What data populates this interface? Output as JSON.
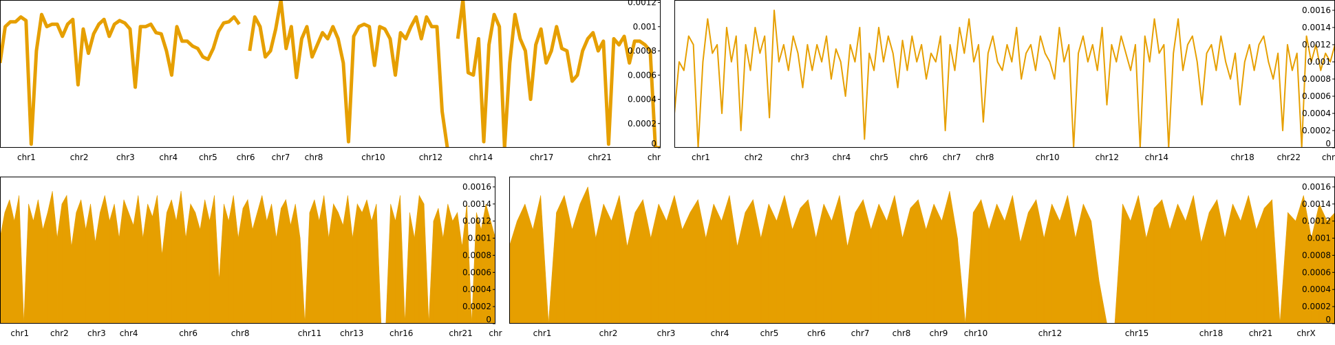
{
  "colors": {
    "series": "#E69F00",
    "axis": "#000000",
    "background": "#FFFFFF"
  },
  "chart_data": [
    {
      "type": "line",
      "title": "",
      "xlabel": "",
      "ylabel": "",
      "line_width": "thick",
      "y_axis_side": "right",
      "ylim": [
        0,
        0.00122
      ],
      "y_ticks": [
        "0",
        "0.0002",
        "0.0004",
        "0.0006",
        "0.0008",
        "0.001",
        "0.0012"
      ],
      "y_tick_values": [
        0,
        0.0002,
        0.0004,
        0.0006,
        0.0008,
        0.001,
        0.0012
      ],
      "x_tick_labels": [
        "chr1",
        "chr2",
        "chr3",
        "chr4",
        "chr5",
        "chr6",
        "chr7",
        "chr8",
        "chr10",
        "chr12",
        "chr14",
        "chr17",
        "chr21",
        "chr"
      ],
      "x_tick_positions": [
        0.04,
        0.12,
        0.19,
        0.255,
        0.315,
        0.372,
        0.425,
        0.475,
        0.565,
        0.652,
        0.728,
        0.82,
        0.908,
        0.99
      ],
      "values": [
        0.0007,
        0.001,
        0.00104,
        0.00104,
        0.00108,
        0.00105,
        3e-05,
        0.0008,
        0.0011,
        0.001,
        0.00102,
        0.00102,
        0.00092,
        0.00102,
        0.00106,
        0.00052,
        0.00098,
        0.00078,
        0.00094,
        0.00102,
        0.00106,
        0.00092,
        0.00102,
        0.00105,
        0.00103,
        0.00098,
        0.0005,
        0.001,
        0.001,
        0.00102,
        0.00095,
        0.00094,
        0.0008,
        0.0006,
        0.001,
        0.00088,
        0.00088,
        0.00084,
        0.00082,
        0.00075,
        0.00073,
        0.00082,
        0.00096,
        0.00103,
        0.00104,
        0.00108,
        0.00102,
        null,
        0.0008,
        0.00108,
        0.001,
        0.00075,
        0.0008,
        0.00098,
        0.00122,
        0.00082,
        0.001,
        0.00058,
        0.0009,
        0.001,
        0.00075,
        0.00085,
        0.00095,
        0.0009,
        0.001,
        0.0009,
        0.0007,
        5e-05,
        0.00092,
        0.001,
        0.00102,
        0.001,
        0.00068,
        0.001,
        0.00098,
        0.0009,
        0.0006,
        0.00095,
        0.0009,
        0.001,
        0.00108,
        0.0009,
        0.00108,
        0.001,
        0.001,
        0.0003,
        0.0,
        null,
        0.0009,
        0.00122,
        0.00062,
        0.0006,
        0.0009,
        5e-05,
        0.00085,
        0.0011,
        0.001,
        0.0,
        0.0007,
        0.0011,
        0.0009,
        0.0008,
        0.0004,
        0.00085,
        0.00098,
        0.0007,
        0.0008,
        0.001,
        0.00082,
        0.0008,
        0.00055,
        0.0006,
        0.0008,
        0.0009,
        0.00095,
        0.0008,
        0.00088,
        3e-05,
        0.0009,
        0.00085,
        0.00092,
        0.0007,
        0.00088,
        0.00088,
        0.00085,
        0.0008,
        0.0,
        0.0
      ]
    },
    {
      "type": "line",
      "title": "",
      "xlabel": "",
      "ylabel": "",
      "line_width": "medium",
      "y_axis_side": "right",
      "ylim": [
        0,
        0.00172
      ],
      "y_ticks": [
        "0",
        "0.0002",
        "0.0004",
        "0.0006",
        "0.0008",
        "0.001",
        "0.0012",
        "0.0014",
        "0.0016"
      ],
      "y_tick_values": [
        0,
        0.0002,
        0.0004,
        0.0006,
        0.0008,
        0.001,
        0.0012,
        0.0014,
        0.0016
      ],
      "x_tick_labels": [
        "chr1",
        "chr2",
        "chr3",
        "chr4",
        "chr5",
        "chr6",
        "chr7",
        "chr8",
        "chr10",
        "chr12",
        "chr14",
        "chr18",
        "chr22",
        "chr"
      ],
      "x_tick_positions": [
        0.04,
        0.12,
        0.19,
        0.253,
        0.31,
        0.37,
        0.42,
        0.47,
        0.565,
        0.655,
        0.73,
        0.86,
        0.93,
        0.99
      ],
      "values": [
        0.0004,
        0.001,
        0.0009,
        0.0013,
        0.0012,
        0.0,
        0.001,
        0.0015,
        0.0011,
        0.0012,
        0.0004,
        0.0014,
        0.001,
        0.0013,
        0.0002,
        0.0012,
        0.0009,
        0.0014,
        0.0011,
        0.0013,
        0.00035,
        0.0016,
        0.001,
        0.0012,
        0.0009,
        0.0013,
        0.0011,
        0.0007,
        0.0012,
        0.0009,
        0.0012,
        0.001,
        0.0013,
        0.0008,
        0.00115,
        0.001,
        0.0006,
        0.0012,
        0.001,
        0.0014,
        0.0001,
        0.0011,
        0.0009,
        0.0014,
        0.001,
        0.0013,
        0.0011,
        0.0007,
        0.00125,
        0.0009,
        0.0013,
        0.001,
        0.0012,
        0.0008,
        0.0011,
        0.001,
        0.0013,
        0.0002,
        0.0012,
        0.0009,
        0.0014,
        0.0011,
        0.0015,
        0.001,
        0.0012,
        0.0003,
        0.0011,
        0.0013,
        0.001,
        0.0009,
        0.0012,
        0.001,
        0.0014,
        0.0008,
        0.0011,
        0.0012,
        0.0009,
        0.0013,
        0.0011,
        0.001,
        0.0008,
        0.0014,
        0.001,
        0.0012,
        0.0,
        0.0011,
        0.0013,
        0.001,
        0.0012,
        0.0009,
        0.0014,
        0.0005,
        0.0012,
        0.001,
        0.0013,
        0.0011,
        0.0009,
        0.0012,
        0.0,
        0.0013,
        0.001,
        0.0015,
        0.0011,
        0.0012,
        0.0,
        0.0011,
        0.0015,
        0.0009,
        0.0012,
        0.0013,
        0.001,
        0.0005,
        0.0011,
        0.0012,
        0.0009,
        0.0013,
        0.001,
        0.0008,
        0.0011,
        0.0005,
        0.001,
        0.0012,
        0.0009,
        0.0012,
        0.0013,
        0.001,
        0.0008,
        0.0011,
        0.0002,
        0.0012,
        0.0009,
        0.0011,
        0.0,
        0.0013,
        0.001,
        0.0012,
        0.0009,
        0.0011,
        0.001,
        0.0012
      ]
    },
    {
      "type": "area",
      "title": "",
      "xlabel": "",
      "ylabel": "",
      "y_axis_side": "right",
      "ylim": [
        0,
        0.00172
      ],
      "y_ticks": [
        "0",
        "0.0002",
        "0.0004",
        "0.0006",
        "0.0008",
        "0.001",
        "0.0012",
        "0.0014",
        "0.0016"
      ],
      "y_tick_values": [
        0,
        0.0002,
        0.0004,
        0.0006,
        0.0008,
        0.001,
        0.0012,
        0.0014,
        0.0016
      ],
      "x_tick_labels": [
        "chr1",
        "chr2",
        "chr3",
        "chr4",
        "chr6",
        "chr8",
        "chr11",
        "chr13",
        "chr16",
        "chr21",
        "chr"
      ],
      "x_tick_positions": [
        0.04,
        0.12,
        0.195,
        0.26,
        0.38,
        0.485,
        0.625,
        0.71,
        0.81,
        0.93,
        1.0
      ],
      "values": [
        0.001,
        0.0013,
        0.00145,
        0.0012,
        0.0015,
        0.0,
        0.0014,
        0.0012,
        0.00145,
        0.0011,
        0.0013,
        0.00155,
        0.001,
        0.0014,
        0.0015,
        0.0009,
        0.0013,
        0.00145,
        0.0011,
        0.0014,
        0.00095,
        0.0013,
        0.0015,
        0.0012,
        0.0014,
        0.001,
        0.00145,
        0.0013,
        0.00115,
        0.0015,
        0.001,
        0.0014,
        0.00125,
        0.0015,
        0.0008,
        0.0013,
        0.00145,
        0.0012,
        0.00155,
        0.001,
        0.0014,
        0.0013,
        0.0011,
        0.00145,
        0.0012,
        0.0015,
        0.0005,
        0.0014,
        0.0012,
        0.0015,
        0.001,
        0.00135,
        0.00145,
        0.0011,
        0.0013,
        0.0015,
        0.0012,
        0.0014,
        0.001,
        0.00135,
        0.00145,
        0.00115,
        0.0014,
        0.001,
        0.0,
        0.0013,
        0.00145,
        0.0012,
        0.0015,
        0.001,
        0.0014,
        0.0013,
        0.00115,
        0.0015,
        0.001,
        0.0014,
        0.0013,
        0.00145,
        0.0012,
        0.0014,
        0.0,
        0.0,
        0.0014,
        0.0012,
        0.0015,
        0.0,
        0.0013,
        0.001,
        0.0015,
        0.0014,
        0.0,
        0.0012,
        0.00135,
        0.001,
        0.0014,
        0.0012,
        0.0013,
        0.0009,
        0.0014,
        0.0,
        0.0013,
        0.0011,
        0.0014,
        0.0012,
        0.001
      ]
    },
    {
      "type": "area",
      "title": "",
      "xlabel": "",
      "ylabel": "",
      "y_axis_side": "right",
      "ylim": [
        0,
        0.00172
      ],
      "y_ticks": [
        "0",
        "0.0002",
        "0.0004",
        "0.0006",
        "0.0008",
        "0.001",
        "0.0012",
        "0.0014",
        "0.0016"
      ],
      "y_tick_values": [
        0,
        0.0002,
        0.0004,
        0.0006,
        0.0008,
        0.001,
        0.0012,
        0.0014,
        0.0016
      ],
      "x_tick_labels": [
        "chr1",
        "chr2",
        "chr3",
        "chr4",
        "chr5",
        "chr6",
        "chr7",
        "chr8",
        "chr9",
        "chr10",
        "chr12",
        "chr15",
        "chr18",
        "chr21",
        "chrX"
      ],
      "x_tick_positions": [
        0.04,
        0.12,
        0.19,
        0.255,
        0.315,
        0.372,
        0.425,
        0.475,
        0.52,
        0.565,
        0.655,
        0.76,
        0.85,
        0.91,
        0.965
      ],
      "values": [
        0.0009,
        0.0012,
        0.0014,
        0.0011,
        0.0015,
        0.0,
        0.0013,
        0.0015,
        0.0011,
        0.0014,
        0.0016,
        0.001,
        0.0014,
        0.0012,
        0.0015,
        0.0009,
        0.0013,
        0.00145,
        0.001,
        0.0014,
        0.0012,
        0.0015,
        0.0011,
        0.0013,
        0.00145,
        0.001,
        0.0014,
        0.0012,
        0.0015,
        0.0009,
        0.0013,
        0.00145,
        0.001,
        0.0014,
        0.0012,
        0.0015,
        0.0011,
        0.00135,
        0.00145,
        0.001,
        0.0014,
        0.0012,
        0.0015,
        0.0009,
        0.0013,
        0.00145,
        0.0011,
        0.0014,
        0.0012,
        0.0015,
        0.001,
        0.00135,
        0.00145,
        0.0011,
        0.0014,
        0.0012,
        0.00155,
        0.001,
        0.0,
        0.0013,
        0.00145,
        0.0011,
        0.0014,
        0.0012,
        0.0015,
        0.00095,
        0.0013,
        0.00145,
        0.001,
        0.0014,
        0.0012,
        0.0015,
        0.001,
        0.0014,
        0.0012,
        0.0005,
        0.0,
        0.0,
        0.0014,
        0.0012,
        0.0015,
        0.001,
        0.00135,
        0.00145,
        0.0011,
        0.0014,
        0.0012,
        0.0015,
        0.00095,
        0.0013,
        0.00145,
        0.001,
        0.0014,
        0.0012,
        0.0015,
        0.0011,
        0.00135,
        0.00145,
        0.0,
        0.0013,
        0.0012,
        0.0015,
        0.001,
        0.0014,
        0.0012,
        0.0013
      ]
    }
  ]
}
